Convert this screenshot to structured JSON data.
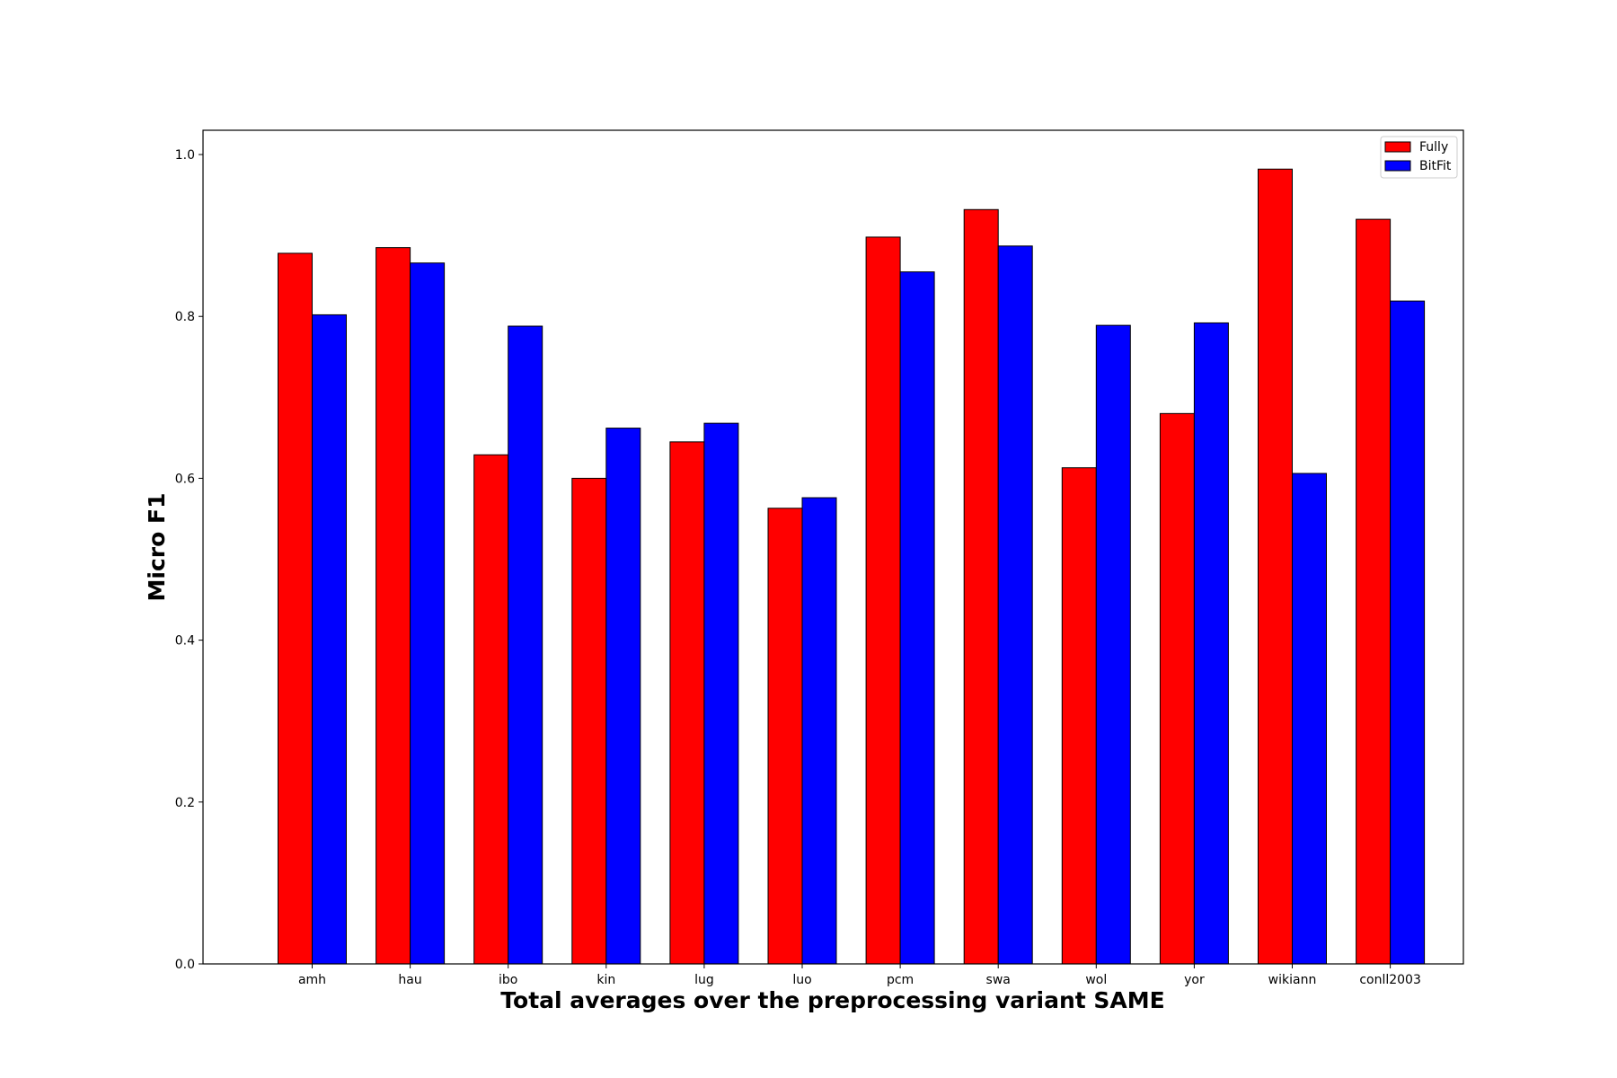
{
  "chart_data": {
    "type": "bar",
    "title": "",
    "xlabel": "Total averages over the preprocessing variant SAME",
    "ylabel": "Micro F1",
    "categories": [
      "amh",
      "hau",
      "ibo",
      "kin",
      "lug",
      "luo",
      "pcm",
      "swa",
      "wol",
      "yor",
      "wikiann",
      "conll2003"
    ],
    "series": [
      {
        "name": "Fully",
        "color": "#ff0000",
        "values": [
          0.878,
          0.885,
          0.629,
          0.6,
          0.645,
          0.563,
          0.898,
          0.932,
          0.613,
          0.68,
          0.982,
          0.92
        ]
      },
      {
        "name": "BitFit",
        "color": "#0000ff",
        "values": [
          0.802,
          0.866,
          0.788,
          0.662,
          0.668,
          0.576,
          0.855,
          0.887,
          0.789,
          0.792,
          0.606,
          0.819
        ]
      }
    ],
    "ylim": [
      0,
      1.03
    ],
    "yticks": [
      0.0,
      0.2,
      0.4,
      0.6,
      0.8,
      1.0
    ],
    "ytick_labels": [
      "0.0",
      "0.2",
      "0.4",
      "0.6",
      "0.8",
      "1.0"
    ],
    "grid": false,
    "legend_position": "top-right"
  }
}
